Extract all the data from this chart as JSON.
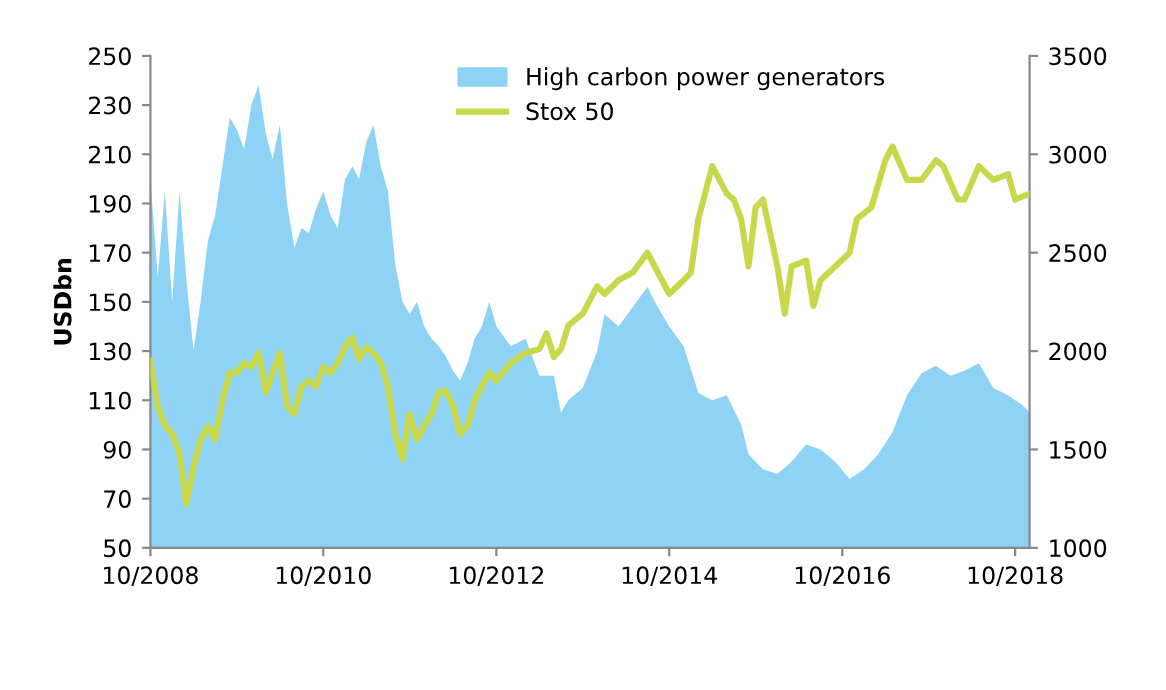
{
  "chart_data": {
    "type": "line",
    "ylabel": "USDbn",
    "xlim": [
      "2008-10",
      "2018-12"
    ],
    "xticks": [
      {
        "value": "2008-10",
        "label": "10/2008"
      },
      {
        "value": "2010-10",
        "label": "10/2010"
      },
      {
        "value": "2012-10",
        "label": "10/2012"
      },
      {
        "value": "2014-10",
        "label": "10/2014"
      },
      {
        "value": "2016-10",
        "label": "10/2016"
      },
      {
        "value": "2018-10",
        "label": "10/2018"
      }
    ],
    "ylim": [
      50,
      250
    ],
    "yticks": [
      50,
      70,
      90,
      110,
      130,
      150,
      170,
      190,
      210,
      230,
      250
    ],
    "y2lim": [
      1000,
      3500
    ],
    "y2ticks": [
      1000,
      1500,
      2000,
      2500,
      3000,
      3500
    ],
    "grid": false,
    "legend": "top right",
    "series": [
      {
        "name": "High carbon power generators",
        "type": "area",
        "color": "#8ed3f5",
        "x": [
          "2008-10",
          "2008-11",
          "2008-12",
          "2009-01",
          "2009-02",
          "2009-03",
          "2009-04",
          "2009-05",
          "2009-06",
          "2009-07",
          "2009-08",
          "2009-09",
          "2009-10",
          "2009-11",
          "2009-12",
          "2010-01",
          "2010-02",
          "2010-03",
          "2010-04",
          "2010-05",
          "2010-06",
          "2010-07",
          "2010-08",
          "2010-09",
          "2010-10",
          "2010-11",
          "2010-12",
          "2011-01",
          "2011-02",
          "2011-03",
          "2011-04",
          "2011-05",
          "2011-06",
          "2011-07",
          "2011-08",
          "2011-09",
          "2011-10",
          "2011-11",
          "2011-12",
          "2012-01",
          "2012-02",
          "2012-03",
          "2012-04",
          "2012-05",
          "2012-06",
          "2012-07",
          "2012-08",
          "2012-09",
          "2012-10",
          "2012-12",
          "2013-02",
          "2013-04",
          "2013-06",
          "2013-07",
          "2013-08",
          "2013-10",
          "2013-12",
          "2014-01",
          "2014-03",
          "2014-05",
          "2014-07",
          "2014-08",
          "2014-10",
          "2014-12",
          "2015-02",
          "2015-04",
          "2015-06",
          "2015-08",
          "2015-09",
          "2015-11",
          "2016-01",
          "2016-03",
          "2016-05",
          "2016-07",
          "2016-09",
          "2016-11",
          "2017-01",
          "2017-03",
          "2017-05",
          "2017-07",
          "2017-09",
          "2017-11",
          "2018-01",
          "2018-03",
          "2018-05",
          "2018-07",
          "2018-09",
          "2018-11",
          "2018-12"
        ],
        "values": [
          200,
          160,
          195,
          150,
          195,
          160,
          130,
          150,
          175,
          185,
          205,
          225,
          220,
          212,
          230,
          238,
          218,
          208,
          222,
          190,
          172,
          180,
          178,
          188,
          195,
          185,
          180,
          200,
          205,
          200,
          215,
          222,
          205,
          195,
          165,
          150,
          145,
          150,
          140,
          135,
          132,
          128,
          122,
          118,
          125,
          135,
          140,
          150,
          140,
          132,
          135,
          120,
          120,
          105,
          110,
          115,
          130,
          145,
          140,
          148,
          156,
          150,
          140,
          132,
          113,
          110,
          112,
          100,
          88,
          82,
          80,
          85,
          92,
          90,
          85,
          78,
          82,
          88,
          97,
          112,
          121,
          124,
          120,
          122,
          125,
          115,
          112,
          108,
          105
        ]
      },
      {
        "name": "Stox 50",
        "axis": "y2",
        "color": "#c9d84b",
        "x": [
          "2008-10",
          "2008-11",
          "2008-12",
          "2009-01",
          "2009-02",
          "2009-03",
          "2009-04",
          "2009-05",
          "2009-06",
          "2009-07",
          "2009-08",
          "2009-09",
          "2009-10",
          "2009-11",
          "2009-12",
          "2010-01",
          "2010-02",
          "2010-03",
          "2010-04",
          "2010-05",
          "2010-06",
          "2010-07",
          "2010-08",
          "2010-09",
          "2010-10",
          "2010-11",
          "2010-12",
          "2011-01",
          "2011-02",
          "2011-03",
          "2011-04",
          "2011-05",
          "2011-06",
          "2011-07",
          "2011-08",
          "2011-09",
          "2011-10",
          "2011-11",
          "2011-12",
          "2012-01",
          "2012-02",
          "2012-03",
          "2012-04",
          "2012-05",
          "2012-06",
          "2012-07",
          "2012-08",
          "2012-09",
          "2012-10",
          "2012-12",
          "2013-02",
          "2013-04",
          "2013-05",
          "2013-06",
          "2013-07",
          "2013-08",
          "2013-10",
          "2013-12",
          "2014-01",
          "2014-03",
          "2014-05",
          "2014-07",
          "2014-08",
          "2014-10",
          "2014-12",
          "2015-01",
          "2015-02",
          "2015-04",
          "2015-06",
          "2015-07",
          "2015-08",
          "2015-09",
          "2015-10",
          "2015-11",
          "2016-01",
          "2016-02",
          "2016-03",
          "2016-05",
          "2016-06",
          "2016-07",
          "2016-09",
          "2016-11",
          "2016-12",
          "2017-02",
          "2017-04",
          "2017-05",
          "2017-07",
          "2017-09",
          "2017-11",
          "2017-12",
          "2018-02",
          "2018-03",
          "2018-05",
          "2018-07",
          "2018-09",
          "2018-10",
          "2018-12"
        ],
        "values": [
          1950,
          1720,
          1620,
          1580,
          1480,
          1220,
          1410,
          1550,
          1620,
          1550,
          1750,
          1890,
          1890,
          1940,
          1920,
          1990,
          1790,
          1890,
          1990,
          1720,
          1680,
          1820,
          1850,
          1820,
          1920,
          1890,
          1940,
          2020,
          2070,
          1960,
          2020,
          1990,
          1940,
          1820,
          1580,
          1450,
          1680,
          1550,
          1620,
          1680,
          1790,
          1800,
          1720,
          1580,
          1620,
          1750,
          1820,
          1890,
          1850,
          1940,
          1990,
          2010,
          2090,
          1970,
          2010,
          2130,
          2190,
          2330,
          2290,
          2360,
          2400,
          2500,
          2430,
          2290,
          2360,
          2400,
          2670,
          2940,
          2800,
          2770,
          2670,
          2430,
          2730,
          2770,
          2430,
          2190,
          2430,
          2460,
          2230,
          2360,
          2430,
          2500,
          2670,
          2730,
          2970,
          3040,
          2870,
          2870,
          2970,
          2940,
          2770,
          2770,
          2940,
          2870,
          2900,
          2770,
          2800
        ]
      }
    ]
  }
}
